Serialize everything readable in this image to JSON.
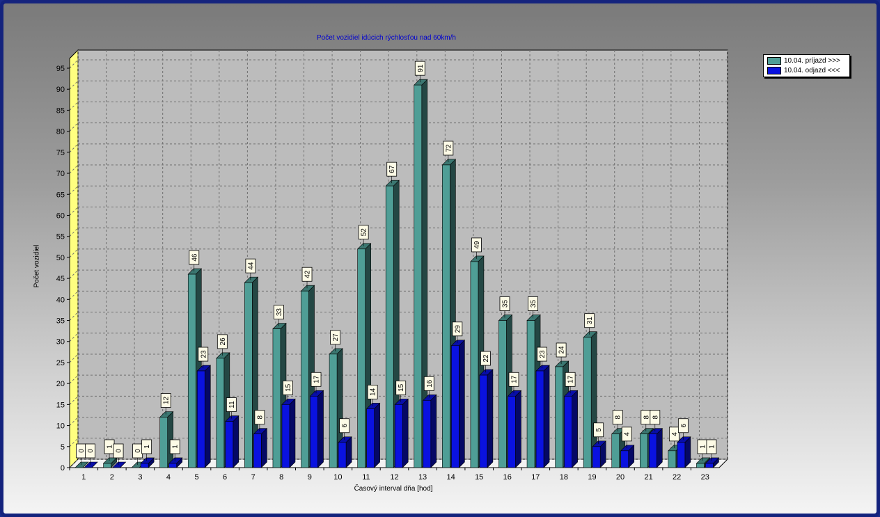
{
  "chart_data": {
    "type": "bar",
    "title": "Počet vozidiel idúcich rýchlosťou nad 60km/h",
    "xlabel": "Časový interval dňa [hod]",
    "ylabel": "Počet vozidiel",
    "ylim": [
      0,
      95
    ],
    "yticks": [
      0,
      5,
      10,
      15,
      20,
      25,
      30,
      35,
      40,
      45,
      50,
      55,
      60,
      65,
      70,
      75,
      80,
      85,
      90,
      95
    ],
    "grid": true,
    "legend_position": "top-right",
    "categories": [
      "1",
      "2",
      "3",
      "4",
      "5",
      "6",
      "7",
      "8",
      "9",
      "10",
      "11",
      "12",
      "13",
      "14",
      "15",
      "16",
      "17",
      "18",
      "19",
      "20",
      "21",
      "22",
      "23"
    ],
    "series": [
      {
        "name": "10.04.  príjazd >>>",
        "color": "#4f9e96",
        "values": [
          0,
          1,
          0,
          12,
          46,
          26,
          44,
          33,
          42,
          27,
          52,
          67,
          91,
          72,
          49,
          35,
          35,
          24,
          31,
          8,
          8,
          4,
          1
        ]
      },
      {
        "name": "10.04.  odjazd <<<",
        "color": "#0a12e0",
        "values": [
          0,
          0,
          1,
          1,
          23,
          11,
          8,
          15,
          17,
          6,
          14,
          15,
          16,
          29,
          22,
          17,
          23,
          17,
          5,
          4,
          8,
          6,
          1
        ]
      }
    ]
  }
}
